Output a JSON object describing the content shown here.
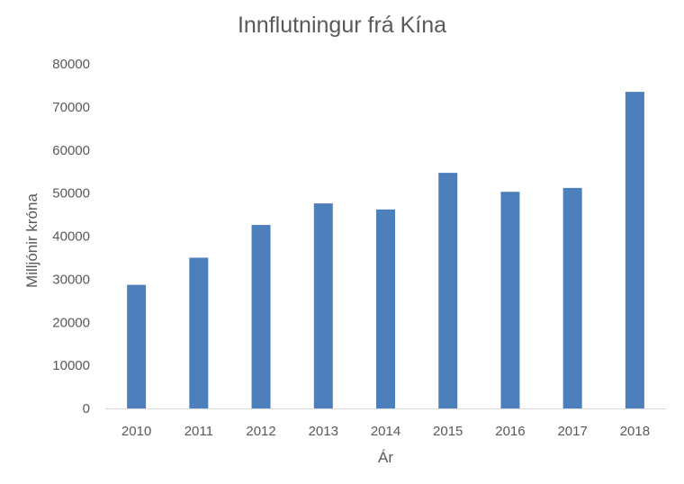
{
  "chart_data": {
    "type": "bar",
    "title": "Innflutningur frá Kína",
    "xlabel": "Ár",
    "ylabel": "Milljónir króna",
    "categories": [
      "2010",
      "2011",
      "2012",
      "2013",
      "2014",
      "2015",
      "2016",
      "2017",
      "2018"
    ],
    "series": [
      {
        "values": [
          28700,
          35000,
          42600,
          47600,
          46200,
          54700,
          50300,
          51200,
          73500
        ]
      }
    ],
    "ylim": [
      0,
      80000
    ],
    "yticks": [
      0,
      10000,
      20000,
      30000,
      40000,
      50000,
      60000,
      70000,
      80000
    ],
    "grid": false,
    "legend": "none",
    "bar_color": "#4e7fbd",
    "text_color": "#595959",
    "axis_color": "#d9d9d9"
  }
}
